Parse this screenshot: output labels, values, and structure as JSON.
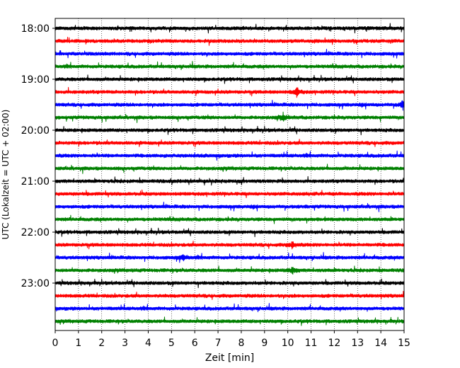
{
  "chart_data": {
    "type": "line",
    "title": "",
    "xlabel": "Zeit  [min]",
    "ylabel": "UTC (Lokalzeit = UTC + 02:00)",
    "xlim": [
      0,
      15
    ],
    "xticks": [
      "0",
      "1",
      "2",
      "3",
      "4",
      "5",
      "6",
      "7",
      "8",
      "9",
      "10",
      "11",
      "12",
      "13",
      "14",
      "15"
    ],
    "ytick_labels": [
      "18:00",
      "19:00",
      "20:00",
      "21:00",
      "22:00",
      "23:00"
    ],
    "grid": "vertical dotted",
    "trace_colors": [
      "#000000",
      "#ff0000",
      "#0000ff",
      "#008000"
    ],
    "start_hour": "18:00",
    "interval_minutes": 15,
    "series": [
      {
        "start": "18:00",
        "color": "#000000"
      },
      {
        "start": "18:15",
        "color": "#ff0000"
      },
      {
        "start": "18:30",
        "color": "#0000ff"
      },
      {
        "start": "18:45",
        "color": "#008000"
      },
      {
        "start": "19:00",
        "color": "#000000"
      },
      {
        "start": "19:15",
        "color": "#ff0000"
      },
      {
        "start": "19:30",
        "color": "#0000ff"
      },
      {
        "start": "19:45",
        "color": "#008000"
      },
      {
        "start": "20:00",
        "color": "#000000"
      },
      {
        "start": "20:15",
        "color": "#ff0000"
      },
      {
        "start": "20:30",
        "color": "#0000ff"
      },
      {
        "start": "20:45",
        "color": "#008000"
      },
      {
        "start": "21:00",
        "color": "#000000"
      },
      {
        "start": "21:15",
        "color": "#ff0000"
      },
      {
        "start": "21:30",
        "color": "#0000ff"
      },
      {
        "start": "21:45",
        "color": "#008000"
      },
      {
        "start": "22:00",
        "color": "#000000"
      },
      {
        "start": "22:15",
        "color": "#ff0000"
      },
      {
        "start": "22:30",
        "color": "#0000ff"
      },
      {
        "start": "22:45",
        "color": "#008000"
      },
      {
        "start": "23:00",
        "color": "#000000"
      },
      {
        "start": "23:15",
        "color": "#ff0000"
      },
      {
        "start": "23:30",
        "color": "#0000ff"
      },
      {
        "start": "23:45",
        "color": "#008000"
      }
    ],
    "events": [
      {
        "trace": "19:15",
        "minute": 10.4,
        "amplitude": "large"
      },
      {
        "trace": "19:30",
        "minute": 14.95,
        "amplitude": "large"
      },
      {
        "trace": "19:45",
        "minute": 9.8,
        "amplitude": "medium"
      },
      {
        "trace": "22:15",
        "minute": 10.2,
        "amplitude": "medium"
      },
      {
        "trace": "22:45",
        "minute": 10.2,
        "amplitude": "medium"
      },
      {
        "trace": "22:30",
        "minute": 5.5,
        "amplitude": "medium"
      }
    ]
  }
}
